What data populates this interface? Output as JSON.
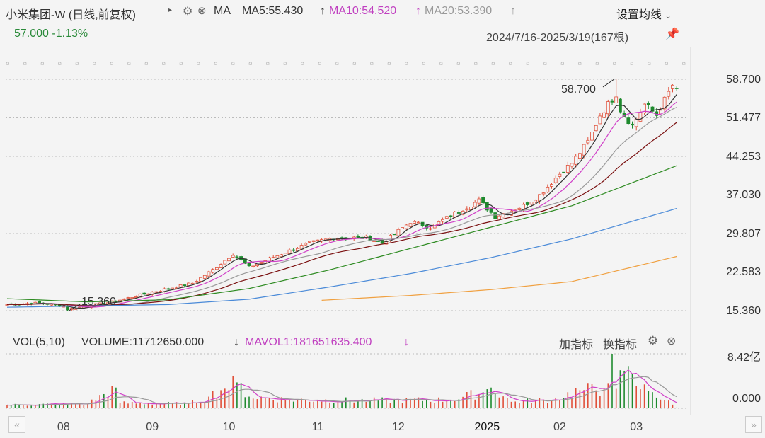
{
  "header": {
    "title": "小米集团-W (日线,前复权)",
    "ma_label": "MA",
    "ma5": "MA5:55.430",
    "ma10": "MA10:54.520",
    "ma20": "MA20:53.390",
    "arrow_up": "↑",
    "settings": "设置均线",
    "price": "57.000",
    "change": "-1.13%",
    "range": "2024/7/16-2025/3/19(167根)"
  },
  "volume_header": {
    "label": "VOL(5,10)",
    "volume": "VOLUME:11712650.000",
    "volume_arrow": "↓",
    "mavol": "MAVOL1:181651635.400",
    "mavol_arrow": "↓",
    "add_indicator": "加指标",
    "switch_indicator": "换指标"
  },
  "colors": {
    "up": "#e0503a",
    "down": "#1e8a2e",
    "ma5": "#333333",
    "ma10": "#d040c8",
    "ma20": "#999999",
    "ma30": "#7a1010",
    "ma60": "#2e8b22",
    "ma120": "#4a8ad8",
    "ma250": "#f0a040"
  },
  "chart_data": {
    "type": "candlestick",
    "bars": 167,
    "period": "2024/7/16-2025/3/19",
    "y_ticks": [
      "58.700",
      "51.477",
      "44.253",
      "37.030",
      "29.807",
      "22.583",
      "15.360"
    ],
    "ylim": [
      15.36,
      58.7
    ],
    "x_ticks": [
      {
        "label": "08",
        "bar": 14
      },
      {
        "label": "09",
        "bar": 36
      },
      {
        "label": "10",
        "bar": 55
      },
      {
        "label": "11",
        "bar": 77
      },
      {
        "label": "12",
        "bar": 97
      },
      {
        "label": "2025",
        "bar": 119
      },
      {
        "label": "02",
        "bar": 137
      },
      {
        "label": "03",
        "bar": 156
      }
    ],
    "annotations": [
      {
        "text": "58.700",
        "bar": 151,
        "price": 58.7,
        "type": "high"
      },
      {
        "text": "15.360",
        "bar": 15,
        "price": 15.36,
        "type": "low"
      }
    ],
    "close_keypoints": [
      [
        0,
        16.5
      ],
      [
        8,
        16.8
      ],
      [
        14,
        16.2
      ],
      [
        15,
        15.6
      ],
      [
        26,
        17
      ],
      [
        37,
        19
      ],
      [
        46,
        20.5
      ],
      [
        51,
        23
      ],
      [
        56,
        26
      ],
      [
        60,
        23.5
      ],
      [
        68,
        26
      ],
      [
        75,
        28
      ],
      [
        81,
        29
      ],
      [
        89,
        29
      ],
      [
        93,
        28
      ],
      [
        100,
        32
      ],
      [
        105,
        31
      ],
      [
        112,
        34
      ],
      [
        117,
        36
      ],
      [
        121,
        33
      ],
      [
        128,
        35
      ],
      [
        132,
        37
      ],
      [
        137,
        41
      ],
      [
        140,
        43
      ],
      [
        144,
        47
      ],
      [
        147,
        52
      ],
      [
        151,
        56
      ],
      [
        152,
        53
      ],
      [
        155,
        50
      ],
      [
        158,
        54
      ],
      [
        161,
        52
      ],
      [
        165,
        57.6
      ],
      [
        166,
        57
      ]
    ],
    "ma60_keypoints": [
      [
        0,
        17.6
      ],
      [
        20,
        17
      ],
      [
        40,
        17.4
      ],
      [
        60,
        19.5
      ],
      [
        80,
        23
      ],
      [
        100,
        27
      ],
      [
        120,
        31
      ],
      [
        140,
        35
      ],
      [
        166,
        42.5
      ]
    ],
    "ma120_keypoints": [
      [
        0,
        16
      ],
      [
        40,
        16.5
      ],
      [
        60,
        17.5
      ],
      [
        80,
        19.8
      ],
      [
        100,
        22.3
      ],
      [
        120,
        25.3
      ],
      [
        140,
        28.8
      ],
      [
        166,
        34.5
      ]
    ],
    "ma250_keypoints": [
      [
        78,
        17.3
      ],
      [
        100,
        18.2
      ],
      [
        120,
        19.3
      ],
      [
        140,
        20.8
      ],
      [
        166,
        25.5
      ]
    ],
    "volume_unit": "亿",
    "volume_ticks": [
      "8.42亿",
      "0.000"
    ],
    "volume_max": 8.42,
    "volume_keypoints": [
      [
        0,
        0.5
      ],
      [
        20,
        0.7
      ],
      [
        27,
        3.2
      ],
      [
        28,
        0.8
      ],
      [
        45,
        0.7
      ],
      [
        50,
        1.8
      ],
      [
        53,
        2.8
      ],
      [
        57,
        4
      ],
      [
        60,
        1.8
      ],
      [
        70,
        1.3
      ],
      [
        90,
        1.2
      ],
      [
        110,
        1.3
      ],
      [
        118,
        2.5
      ],
      [
        120,
        3.2
      ],
      [
        125,
        1
      ],
      [
        135,
        1.3
      ],
      [
        142,
        2.8
      ],
      [
        148,
        3
      ],
      [
        150,
        8.42
      ],
      [
        151,
        3
      ],
      [
        153,
        5.8
      ],
      [
        156,
        3.5
      ],
      [
        160,
        2.5
      ],
      [
        166,
        0.12
      ]
    ]
  }
}
